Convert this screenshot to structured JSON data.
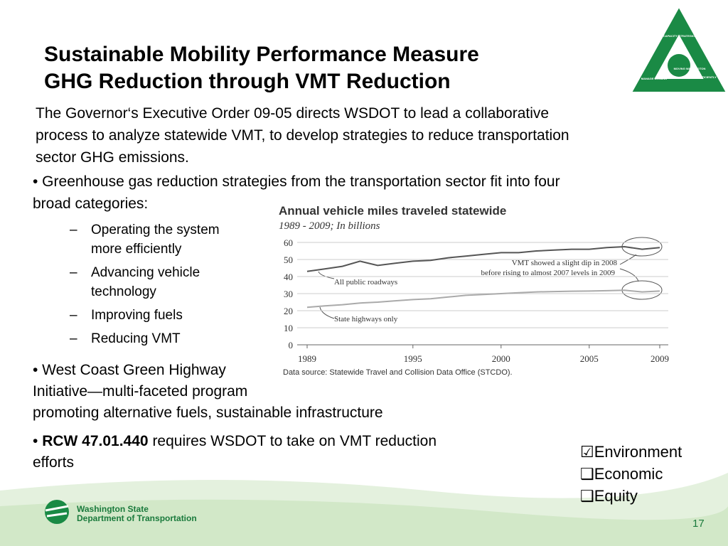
{
  "title": [
    "Sustainable Mobility Performance Measure",
    "GHG Reduction through VMT Reduction"
  ],
  "paragraph": [
    "The Governor‘s Executive Order 09-05 directs WSDOT to lead a collaborative",
    "process to analyze statewide VMT, to develop strategies to reduce transportation",
    "sector GHG emissions."
  ],
  "bullet1": [
    "• Greenhouse gas reduction strategies from the transportation sector fit into four",
    "broad categories:"
  ],
  "dash": "–",
  "subitems": [
    [
      "Operating the system",
      "more efficiently"
    ],
    [
      "Advancing vehicle",
      "technology"
    ],
    [
      "Improving fuels"
    ],
    [
      "Reducing VMT"
    ]
  ],
  "bullet2": [
    "• West Coast Green Highway",
    "Initiative—multi-faceted program",
    "promoting alternative fuels, sustainable infrastructure"
  ],
  "bullet3": {
    "lead": "• ",
    "bold": "RCW 47.01.440",
    "rest": " requires WSDOT to take on VMT reduction",
    "line2": " efforts"
  },
  "checklist": [
    "☑Environment",
    "❑Economic",
    "❑Equity"
  ],
  "logo": {
    "segments": [
      "ADD CAPACITY STRATEGICALLY",
      "MOVING WASHINGTON",
      "OPERATE EFFICIENTLY",
      "MANAGE DEMAND"
    ],
    "org": [
      "Washington State",
      "Department of Transportation"
    ]
  },
  "page_number": "17",
  "chart_data": {
    "type": "line",
    "title": "Annual vehicle miles traveled statewide",
    "subtitle": "1989 - 2009; In billions",
    "x": [
      1989,
      1990,
      1991,
      1992,
      1993,
      1994,
      1995,
      1996,
      1997,
      1998,
      1999,
      2000,
      2001,
      2002,
      2003,
      2004,
      2005,
      2006,
      2007,
      2008,
      2009
    ],
    "series": [
      {
        "name": "All public roadways",
        "color": "#555555",
        "values": [
          43,
          44.5,
          46,
          49,
          46.5,
          47.8,
          49,
          49.5,
          51,
          52,
          53,
          54,
          54,
          55,
          55.5,
          56,
          56,
          57,
          57.5,
          56,
          57
        ]
      },
      {
        "name": "State highways only",
        "color": "#aaaaaa",
        "values": [
          22,
          22.8,
          23.5,
          24.5,
          25,
          25.8,
          26.5,
          27,
          28,
          29,
          29.5,
          30,
          30.5,
          31,
          31.2,
          31.4,
          31.5,
          31.7,
          32,
          31,
          31.5
        ]
      }
    ],
    "xlim": [
      1989,
      2009
    ],
    "xticks": [
      1989,
      1995,
      2000,
      2005,
      2009
    ],
    "ylim": [
      0,
      60
    ],
    "yticks": [
      0,
      10,
      20,
      30,
      40,
      50,
      60
    ],
    "grid": true,
    "annotation": [
      "VMT showed a slight dip in 2008",
      "before rising to almost 2007 levels in 2009"
    ],
    "source": "Data source: Statewide Travel and Collision Data Office (STCDO)."
  }
}
